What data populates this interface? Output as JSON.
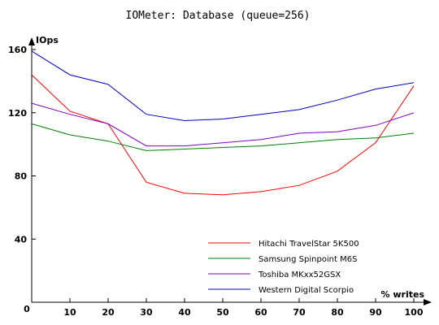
{
  "chart_data": {
    "type": "line",
    "title": "IOMeter: Database (queue=256)",
    "xlabel": "% writes",
    "ylabel": "IOps",
    "x": [
      0,
      10,
      20,
      30,
      40,
      50,
      60,
      70,
      80,
      90,
      100
    ],
    "xlim": [
      0,
      100
    ],
    "ylim": [
      0,
      160
    ],
    "x_ticks": [
      0,
      10,
      20,
      30,
      40,
      50,
      60,
      70,
      80,
      90,
      100
    ],
    "y_ticks": [
      40,
      80,
      120,
      160
    ],
    "origin_label": "0",
    "grid": false,
    "legend_position": "bottom-right",
    "series": [
      {
        "name": "Hitachi TravelStar 5K500",
        "color": "#ff0000",
        "values": [
          144,
          121,
          113,
          76,
          69,
          68,
          70,
          74,
          83,
          101,
          137
        ]
      },
      {
        "name": "Samsung Spinpoint M6S",
        "color": "#008000",
        "values": [
          113,
          106,
          102,
          96,
          97,
          98,
          99,
          101,
          103,
          104,
          107
        ]
      },
      {
        "name": "Toshiba MKxx52GSX",
        "color": "#8000c0",
        "values": [
          126,
          119,
          113,
          99,
          99,
          101,
          103,
          107,
          108,
          112,
          120
        ]
      },
      {
        "name": "Western Digital Scorpio",
        "color": "#0000c0",
        "values": [
          159,
          144,
          138,
          119,
          115,
          116,
          119,
          122,
          128,
          135,
          139
        ]
      }
    ]
  }
}
